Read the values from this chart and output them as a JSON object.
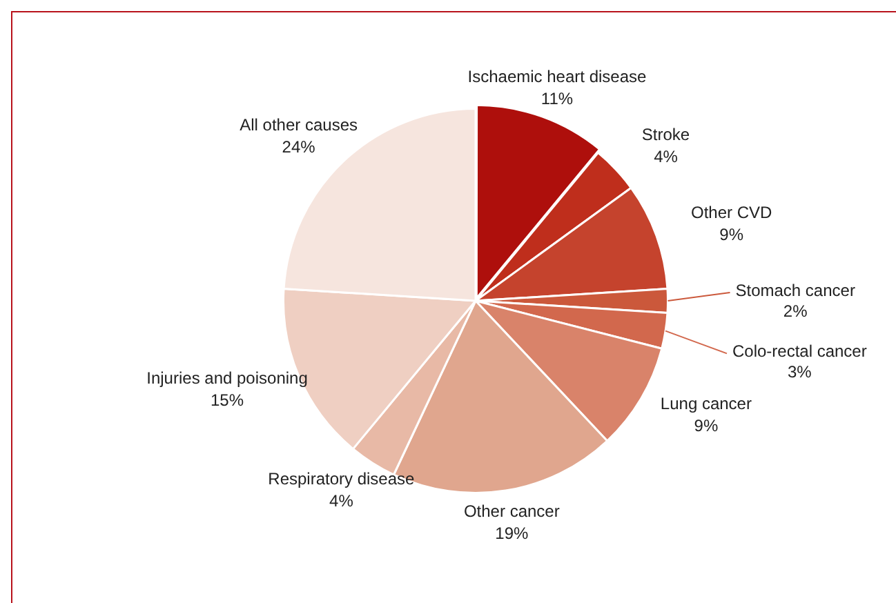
{
  "chart_data": {
    "type": "pie",
    "categories": [
      "Ischaemic heart disease",
      "Stroke",
      "Other CVD",
      "Stomach cancer",
      "Colo-rectal cancer",
      "Lung cancer",
      "Other cancer",
      "Respiratory disease",
      "Injuries and poisoning",
      "All other causes"
    ],
    "values": [
      11,
      4,
      9,
      2,
      3,
      9,
      19,
      4,
      15,
      24
    ],
    "colors": [
      "#ae0f0c",
      "#bf2e1c",
      "#c5432d",
      "#cb583b",
      "#d2684d",
      "#d9836a",
      "#e0a68e",
      "#e8b9a6",
      "#efcfc2",
      "#f6e5de"
    ],
    "value_labels": [
      "11%",
      "4%",
      "9%",
      "2%",
      "3%",
      "9%",
      "19%",
      "4%",
      "15%",
      "24%"
    ],
    "legend": false
  }
}
